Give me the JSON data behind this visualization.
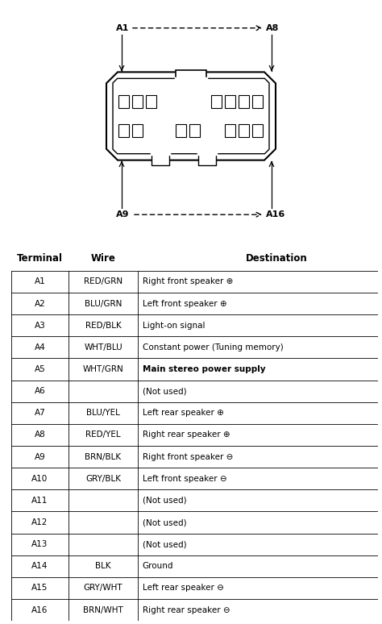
{
  "table_headers": [
    "Terminal",
    "Wire",
    "Destination"
  ],
  "rows": [
    [
      "A1",
      "RED/GRN",
      "Right front speaker ⊕"
    ],
    [
      "A2",
      "BLU/GRN",
      "Left front speaker ⊕"
    ],
    [
      "A3",
      "RED/BLK",
      "Light-on signal"
    ],
    [
      "A4",
      "WHT/BLU",
      "Constant power (Tuning memory)"
    ],
    [
      "A5",
      "WHT/GRN",
      "Main stereo power supply"
    ],
    [
      "A6",
      "",
      "(Not used)"
    ],
    [
      "A7",
      "BLU/YEL",
      "Left rear speaker ⊕"
    ],
    [
      "A8",
      "RED/YEL",
      "Right rear speaker ⊕"
    ],
    [
      "A9",
      "BRN/BLK",
      "Right front speaker ⊖"
    ],
    [
      "A10",
      "GRY/BLK",
      "Left front speaker ⊖"
    ],
    [
      "A11",
      "",
      "(Not used)"
    ],
    [
      "A12",
      "",
      "(Not used)"
    ],
    [
      "A13",
      "",
      "(Not used)"
    ],
    [
      "A14",
      "BLK",
      "Ground"
    ],
    [
      "A15",
      "GRY/WHT",
      "Left rear speaker ⊖"
    ],
    [
      "A16",
      "BRN/WHT",
      "Right rear speaker ⊖"
    ]
  ],
  "bold_rows": [
    4
  ],
  "background_color": "#ffffff",
  "font_size_table": 7.5,
  "font_size_header": 8.5,
  "font_size_connector": 8.0
}
